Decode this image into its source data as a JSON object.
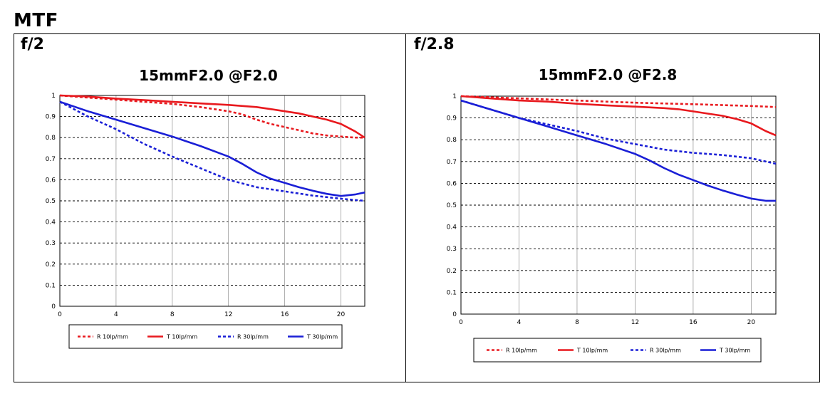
{
  "page": {
    "title": "MTF"
  },
  "panels": [
    {
      "label": "f/2"
    },
    {
      "label": "f/2.8"
    }
  ],
  "colors": {
    "red": "#e8191e",
    "blue": "#1a1fd6",
    "grid": "#000000"
  },
  "chart_data": [
    {
      "type": "line",
      "title": "15mmF2.0 @F2.0",
      "xlim": [
        0,
        21.7
      ],
      "ylim": [
        0,
        1
      ],
      "xticks": [
        "0",
        "4",
        "8",
        "12",
        "16",
        "20"
      ],
      "yticks": [
        "0",
        "0.1",
        "0.2",
        "0.3",
        "0.4",
        "0.5",
        "0.6",
        "0.7",
        "0.8",
        "0.9",
        "1"
      ],
      "grid": true,
      "legend": "bottom",
      "series": [
        {
          "name": "R 10lp/mm",
          "color": "red",
          "dash": true,
          "x": [
            0,
            2,
            4,
            6,
            8,
            10,
            12,
            13,
            14,
            15,
            16,
            17,
            18,
            19,
            20,
            21,
            21.7
          ],
          "y": [
            1.0,
            0.99,
            0.98,
            0.97,
            0.96,
            0.945,
            0.925,
            0.91,
            0.885,
            0.865,
            0.85,
            0.835,
            0.82,
            0.81,
            0.805,
            0.8,
            0.8
          ]
        },
        {
          "name": "T 10lp/mm",
          "color": "red",
          "dash": false,
          "x": [
            0,
            2,
            4,
            6,
            8,
            10,
            12,
            14,
            15,
            16,
            17,
            18,
            19,
            20,
            21,
            21.7
          ],
          "y": [
            1.0,
            0.995,
            0.985,
            0.978,
            0.97,
            0.962,
            0.955,
            0.945,
            0.935,
            0.925,
            0.915,
            0.9,
            0.885,
            0.865,
            0.83,
            0.8
          ]
        },
        {
          "name": "R 30lp/mm",
          "color": "blue",
          "dash": true,
          "x": [
            0,
            2,
            4,
            6,
            8,
            10,
            12,
            14,
            16,
            18,
            20,
            21.7
          ],
          "y": [
            0.97,
            0.9,
            0.84,
            0.77,
            0.71,
            0.655,
            0.6,
            0.565,
            0.545,
            0.525,
            0.51,
            0.5
          ]
        },
        {
          "name": "T 30lp/mm",
          "color": "blue",
          "dash": false,
          "x": [
            0,
            2,
            4,
            6,
            8,
            10,
            12,
            13,
            14,
            15,
            16,
            17,
            18,
            19,
            20,
            21,
            21.7
          ],
          "y": [
            0.97,
            0.925,
            0.885,
            0.845,
            0.805,
            0.76,
            0.71,
            0.675,
            0.635,
            0.605,
            0.585,
            0.565,
            0.548,
            0.533,
            0.523,
            0.53,
            0.54
          ]
        }
      ]
    },
    {
      "type": "line",
      "title": "15mmF2.0 @F2.8",
      "xlim": [
        0,
        21.7
      ],
      "ylim": [
        0,
        1
      ],
      "xticks": [
        "0",
        "4",
        "8",
        "12",
        "16",
        "20"
      ],
      "yticks": [
        "0",
        "0.1",
        "0.2",
        "0.3",
        "0.4",
        "0.5",
        "0.6",
        "0.7",
        "0.8",
        "0.9",
        "1"
      ],
      "grid": true,
      "legend": "bottom",
      "series": [
        {
          "name": "R 10lp/mm",
          "color": "red",
          "dash": true,
          "x": [
            0,
            4,
            8,
            12,
            16,
            20,
            21.7
          ],
          "y": [
            1.0,
            0.99,
            0.98,
            0.97,
            0.963,
            0.955,
            0.95
          ]
        },
        {
          "name": "T 10lp/mm",
          "color": "red",
          "dash": false,
          "x": [
            0,
            2,
            4,
            6,
            8,
            10,
            12,
            14,
            15,
            16,
            17,
            18,
            19,
            20,
            21,
            21.7
          ],
          "y": [
            1.0,
            0.99,
            0.98,
            0.975,
            0.965,
            0.958,
            0.952,
            0.945,
            0.94,
            0.93,
            0.92,
            0.91,
            0.895,
            0.875,
            0.84,
            0.82
          ]
        },
        {
          "name": "R 30lp/mm",
          "color": "blue",
          "dash": true,
          "x": [
            0,
            2,
            4,
            6,
            8,
            10,
            12,
            14,
            16,
            18,
            20,
            21.7
          ],
          "y": [
            0.98,
            0.94,
            0.9,
            0.87,
            0.84,
            0.805,
            0.78,
            0.755,
            0.74,
            0.73,
            0.715,
            0.69
          ]
        },
        {
          "name": "T 30lp/mm",
          "color": "blue",
          "dash": false,
          "x": [
            0,
            2,
            4,
            6,
            8,
            10,
            12,
            13,
            14,
            15,
            16,
            17,
            18,
            19,
            20,
            21,
            21.7
          ],
          "y": [
            0.98,
            0.94,
            0.9,
            0.86,
            0.82,
            0.78,
            0.735,
            0.705,
            0.67,
            0.64,
            0.615,
            0.59,
            0.568,
            0.548,
            0.53,
            0.52,
            0.52
          ]
        }
      ]
    }
  ]
}
